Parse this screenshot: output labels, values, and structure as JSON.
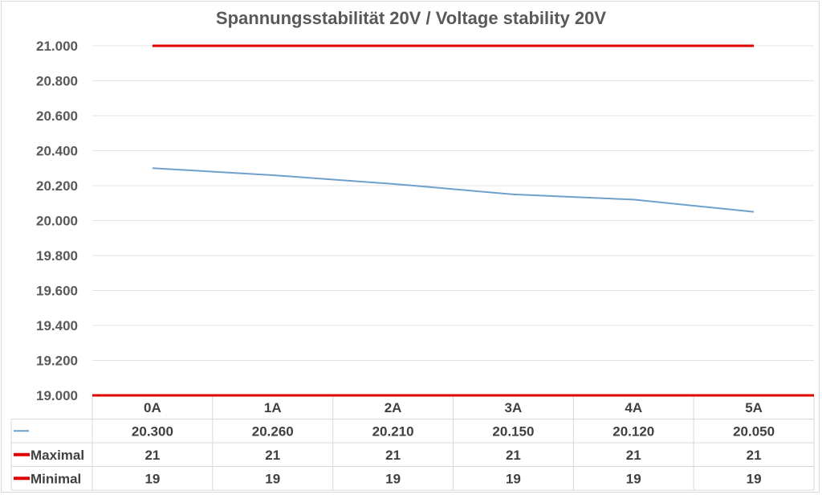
{
  "chart_data": {
    "type": "line",
    "title": "Spannungsstabilität 20V / Voltage stability 20V",
    "categories": [
      "0A",
      "1A",
      "2A",
      "3A",
      "4A",
      "5A"
    ],
    "ylim": [
      19.0,
      21.0
    ],
    "yticks": [
      "19.000",
      "19.200",
      "19.400",
      "19.600",
      "19.800",
      "20.000",
      "20.200",
      "20.400",
      "20.600",
      "20.800",
      "21.000"
    ],
    "grid": true,
    "legend": "data-table",
    "series": [
      {
        "name": "",
        "color": "#6fa0cc",
        "values": [
          20.3,
          20.26,
          20.21,
          20.15,
          20.12,
          20.05
        ],
        "labels": [
          "20.300",
          "20.260",
          "20.210",
          "20.150",
          "20.120",
          "20.050"
        ]
      },
      {
        "name": "Maximal",
        "color": "#e00000",
        "values": [
          21,
          21,
          21,
          21,
          21,
          21
        ],
        "labels": [
          "21",
          "21",
          "21",
          "21",
          "21",
          "21"
        ]
      },
      {
        "name": "Minimal",
        "color": "#e00000",
        "values": [
          19,
          19,
          19,
          19,
          19,
          19
        ],
        "labels": [
          "19",
          "19",
          "19",
          "19",
          "19",
          "19"
        ]
      }
    ]
  }
}
